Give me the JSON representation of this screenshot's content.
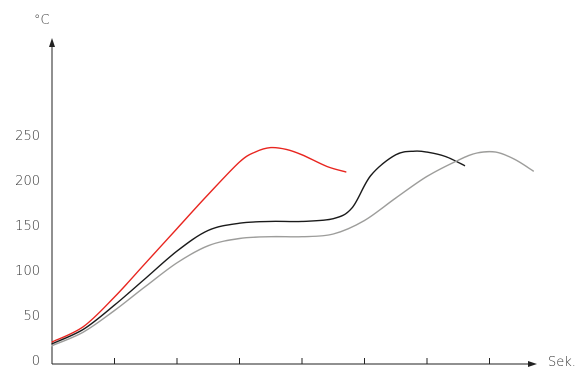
{
  "chart_data": {
    "type": "line",
    "title": "",
    "xlabel": "Sek.",
    "ylabel": "°C",
    "xlim": [
      0,
      7.8
    ],
    "ylim": [
      0,
      250
    ],
    "x_ticks": [
      1,
      2,
      3,
      4,
      5,
      6,
      7
    ],
    "y_ticks": [
      0,
      50,
      100,
      150,
      200,
      250
    ],
    "grid": false,
    "legend": "none",
    "series": [
      {
        "color": "#e8251f",
        "x": [
          0,
          0.5,
          1,
          1.5,
          2,
          2.5,
          3,
          3.25,
          3.5,
          3.75,
          4,
          4.4,
          4.7
        ],
        "y": [
          20,
          37,
          70,
          108,
          146,
          184,
          220,
          231,
          236,
          234,
          228,
          215,
          209
        ]
      },
      {
        "color": "#1a1a1a",
        "x": [
          0,
          0.5,
          1,
          1.5,
          2,
          2.5,
          3,
          3.5,
          4,
          4.5,
          4.8,
          5.1,
          5.5,
          5.8,
          6,
          6.3,
          6.6
        ],
        "y": [
          18,
          34,
          61,
          91,
          121,
          144,
          152,
          154,
          154,
          157,
          169,
          205,
          228,
          232,
          231,
          226,
          216
        ]
      },
      {
        "color": "#9d9d9b",
        "x": [
          0,
          0.5,
          1,
          1.5,
          2,
          2.5,
          3,
          3.5,
          4,
          4.5,
          5,
          5.5,
          6,
          6.5,
          6.8,
          7.1,
          7.4,
          7.7
        ],
        "y": [
          16,
          31,
          55,
          82,
          108,
          127,
          135,
          137,
          137,
          140,
          155,
          180,
          204,
          222,
          230,
          231,
          223,
          210
        ]
      }
    ]
  }
}
